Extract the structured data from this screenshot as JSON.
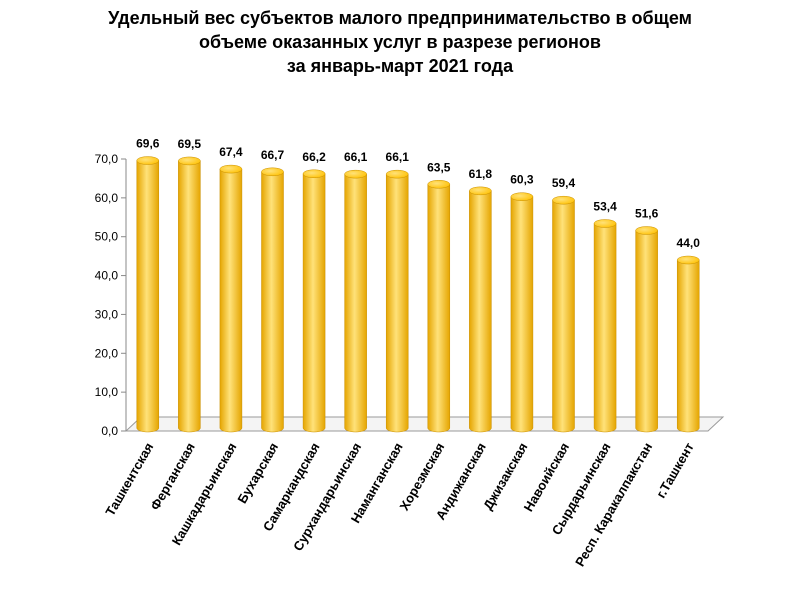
{
  "chart_data": {
    "type": "bar",
    "title_lines": [
      "Удельный вес субъектов малого предпринимательство  в общем",
      "объеме оказанных услуг в разрезе регионов",
      "за январь-март 2021 года"
    ],
    "categories": [
      "Ташкентская",
      "Ферганская",
      "Кашкадарьинская",
      "Бухарская",
      "Самаркандская",
      "Сурхандарьинская",
      "Наманганская",
      "Хорезмская",
      "Андижанская",
      "Джизакская",
      "Навоийская",
      "Сырдарьинская",
      "Респ. Каракалпакстан",
      "г.Ташкент"
    ],
    "values": [
      69.6,
      69.5,
      67.4,
      66.7,
      66.2,
      66.1,
      66.1,
      63.5,
      61.8,
      60.3,
      59.4,
      53.4,
      51.6,
      44.0
    ],
    "value_labels": [
      "69,6",
      "69,5",
      "67,4",
      "66,7",
      "66,2",
      "66,1",
      "66,1",
      "63,5",
      "61,8",
      "60,3",
      "59,4",
      "53,4",
      "51,6",
      "44,0"
    ],
    "yticks": [
      0,
      10,
      20,
      30,
      40,
      50,
      60,
      70
    ],
    "ytick_labels": [
      "0,0",
      "10,0",
      "20,0",
      "30,0",
      "40,0",
      "50,0",
      "60,0",
      "70,0"
    ],
    "ylim": [
      0,
      70
    ],
    "xlabel": "",
    "ylabel": "",
    "grid": false,
    "bar_color": "#FFC000",
    "bar_color_dark": "#E5A500",
    "bar_color_light": "#FFE27A"
  }
}
